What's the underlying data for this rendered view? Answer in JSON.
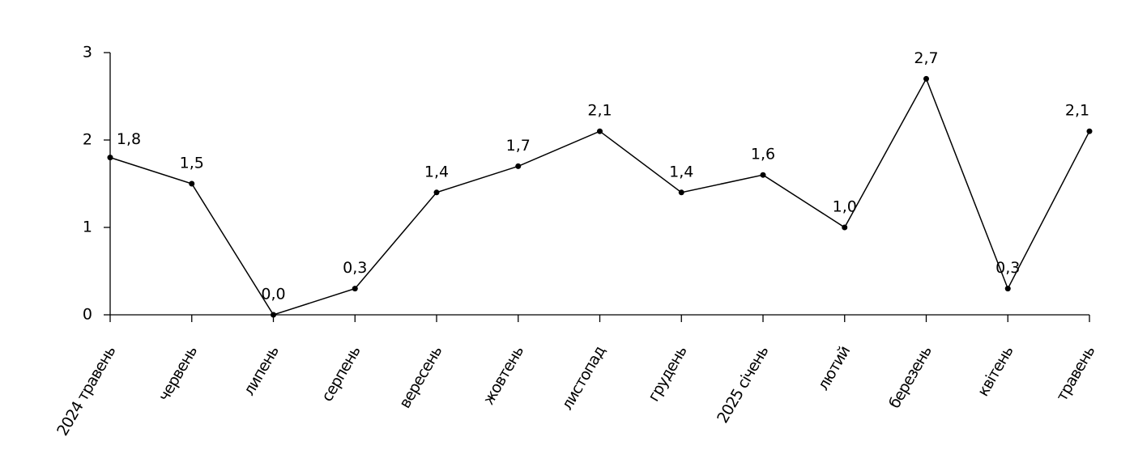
{
  "chart_data": {
    "type": "line",
    "categories": [
      "2024 травень",
      "червень",
      "липень",
      "серпень",
      "вересень",
      "жовтень",
      "листопад",
      "грудень",
      "2025 січень",
      "лютий",
      "березень",
      "квітень",
      "травень"
    ],
    "values": [
      1.8,
      1.5,
      0.0,
      0.3,
      1.4,
      1.7,
      2.1,
      1.4,
      1.6,
      1.0,
      2.7,
      0.3,
      2.1
    ],
    "value_labels": [
      "1,8",
      "1,5",
      "0,0",
      "0,3",
      "1,4",
      "1,7",
      "2,1",
      "1,4",
      "1,6",
      "1,0",
      "2,7",
      "0,3",
      "2,1"
    ],
    "color": "#000000",
    "ylim": [
      0,
      3
    ],
    "yticks": [
      0,
      1,
      2,
      3
    ],
    "grid": false
  }
}
